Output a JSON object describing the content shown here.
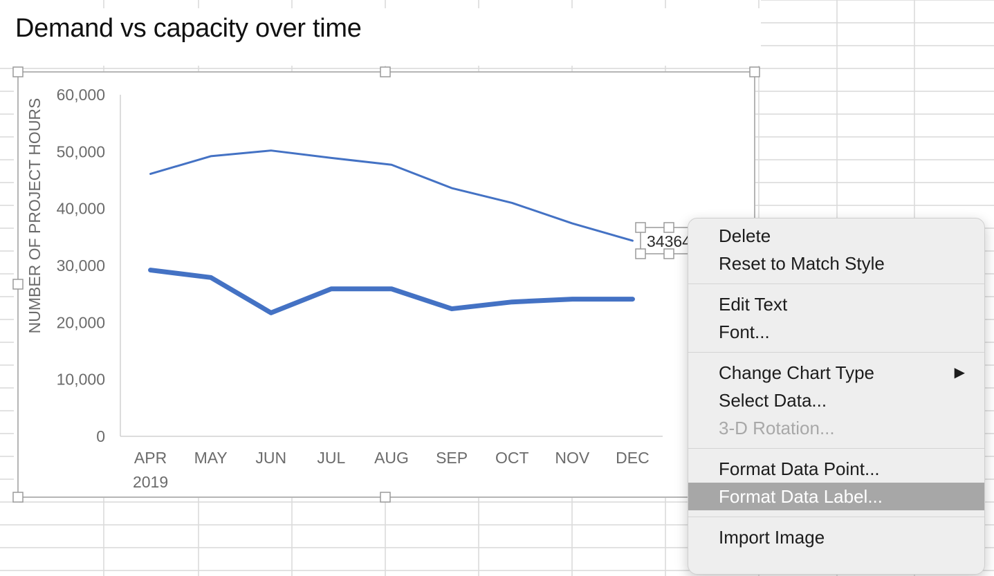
{
  "sheet": {
    "title": "Demand vs capacity over time"
  },
  "chart_data": {
    "type": "line",
    "categories": [
      "APR",
      "MAY",
      "JUN",
      "JUL",
      "AUG",
      "SEP",
      "OCT",
      "NOV",
      "DEC"
    ],
    "category_year": "2019",
    "ylabel": "NUMBER OF PROJECT HOURS",
    "ylim": [
      0,
      60000
    ],
    "yticks": [
      "0",
      "10,000",
      "20,000",
      "30,000",
      "40,000",
      "50,000",
      "60,000"
    ],
    "grid": false,
    "series": [
      {
        "values": [
          46100,
          49200,
          50200,
          48900,
          47700,
          43600,
          41000,
          37400,
          34364
        ],
        "color": "#4472c4",
        "weight": "thin"
      },
      {
        "values": [
          29200,
          27900,
          21700,
          25900,
          25900,
          22400,
          23600,
          24100,
          24100
        ],
        "color": "#4472c4",
        "weight": "thick"
      }
    ],
    "selected_data_label": "34364"
  },
  "context_menu": {
    "sections": [
      [
        {
          "label": "Delete"
        },
        {
          "label": "Reset to Match Style"
        }
      ],
      [
        {
          "label": "Edit Text"
        },
        {
          "label": "Font..."
        }
      ],
      [
        {
          "label": "Change Chart Type",
          "submenu": true
        },
        {
          "label": "Select Data..."
        },
        {
          "label": "3-D Rotation...",
          "disabled": true
        }
      ],
      [
        {
          "label": "Format Data Point..."
        },
        {
          "label": "Format Data Label...",
          "highlighted": true
        }
      ],
      [
        {
          "label": "Import Image"
        }
      ]
    ],
    "submenu_arrow": "▶"
  }
}
